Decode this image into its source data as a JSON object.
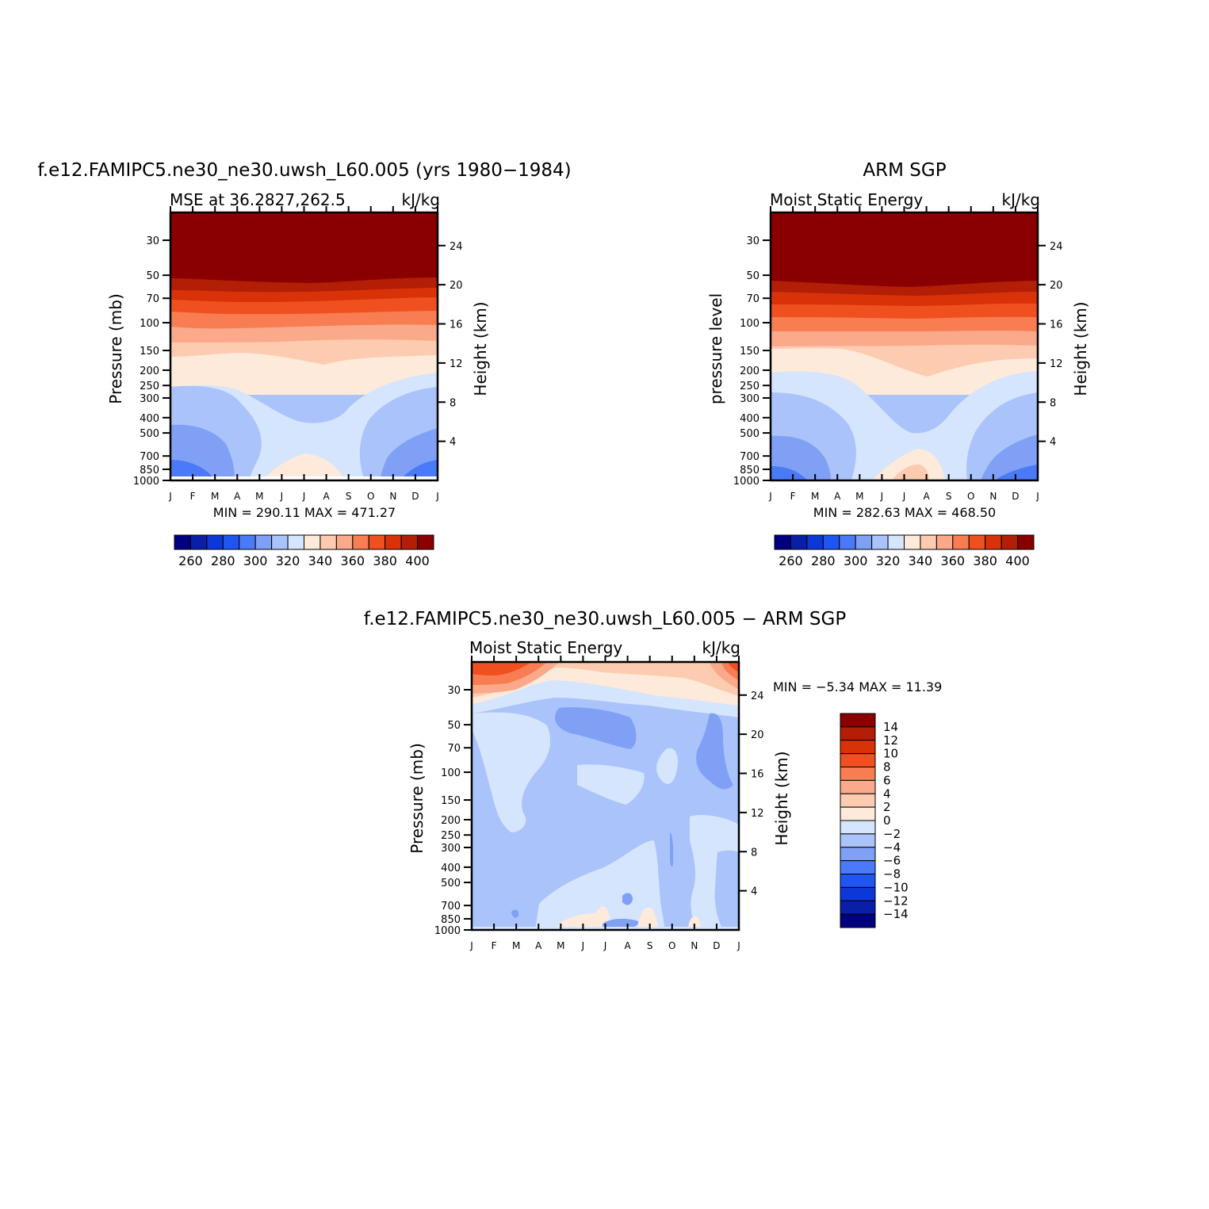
{
  "chart_data": [
    {
      "type": "heatmap",
      "title": "f.e12.FAMIPC5.ne30_ne30.uwsh_L60.005 (yrs 1980−1984)",
      "left_subtitle": "MSE at 36.2827,262.5",
      "right_subtitle": "kJ/kg",
      "ylabel": "Pressure (mb)",
      "ylabel_right": "Height (km)",
      "stats": "MIN = 290.11 MAX = 471.27",
      "x": [
        "J",
        "F",
        "M",
        "A",
        "M",
        "J",
        "J",
        "A",
        "S",
        "O",
        "N",
        "D",
        "J"
      ],
      "y_ticks": [
        "30",
        "50",
        "70",
        "100",
        "150",
        "200",
        "250",
        "300",
        "400",
        "500",
        "700",
        "850",
        "1000"
      ],
      "height_ticks": [
        "24",
        "20",
        "16",
        "12",
        "8",
        "4"
      ],
      "levels": [
        260,
        280,
        300,
        320,
        340,
        360,
        380,
        400
      ],
      "colorbar_labels": [
        "260",
        "280",
        "300",
        "320",
        "340",
        "360",
        "380",
        "400"
      ]
    },
    {
      "type": "heatmap",
      "title": "ARM SGP",
      "left_subtitle": "Moist Static Energy",
      "right_subtitle": "kJ/kg",
      "ylabel": "pressure level",
      "ylabel_right": "Height (km)",
      "stats": "MIN = 282.63 MAX = 468.50",
      "x": [
        "J",
        "F",
        "M",
        "A",
        "M",
        "J",
        "J",
        "A",
        "S",
        "O",
        "N",
        "D",
        "J"
      ],
      "y_ticks": [
        "30",
        "50",
        "70",
        "100",
        "150",
        "200",
        "250",
        "300",
        "400",
        "500",
        "700",
        "850",
        "1000"
      ],
      "height_ticks": [
        "24",
        "20",
        "16",
        "12",
        "8",
        "4"
      ],
      "levels": [
        260,
        280,
        300,
        320,
        340,
        360,
        380,
        400
      ],
      "colorbar_labels": [
        "260",
        "280",
        "300",
        "320",
        "340",
        "360",
        "380",
        "400"
      ]
    },
    {
      "type": "heatmap",
      "title": "f.e12.FAMIPC5.ne30_ne30.uwsh_L60.005 − ARM SGP",
      "left_subtitle": "Moist Static Energy",
      "right_subtitle": "kJ/kg",
      "ylabel": "Pressure (mb)",
      "ylabel_right": "Height (km)",
      "stats": "MIN = −5.34 MAX = 11.39",
      "x": [
        "J",
        "F",
        "M",
        "A",
        "M",
        "J",
        "J",
        "A",
        "S",
        "O",
        "N",
        "D",
        "J"
      ],
      "y_ticks": [
        "30",
        "50",
        "70",
        "100",
        "150",
        "200",
        "250",
        "300",
        "400",
        "500",
        "700",
        "850",
        "1000"
      ],
      "height_ticks": [
        "24",
        "20",
        "16",
        "12",
        "8",
        "4"
      ],
      "levels": [
        -14,
        -12,
        -10,
        -8,
        -6,
        -4,
        -2,
        0,
        2,
        4,
        6,
        8,
        10,
        12,
        14
      ],
      "colorbar_labels": [
        "14",
        "12",
        "10",
        "8",
        "6",
        "4",
        "2",
        "0",
        "−2",
        "−4",
        "−6",
        "−8",
        "−10",
        "−12",
        "−14"
      ]
    }
  ],
  "palette": [
    "#00007f",
    "#0a1fa8",
    "#0d38d8",
    "#1f55f0",
    "#4a7af8",
    "#7fa0f5",
    "#aac3fb",
    "#d4e5fd",
    "#fdeadb",
    "#fdcbb0",
    "#fba98b",
    "#f87d52",
    "#f0501f",
    "#d93209",
    "#b31e06",
    "#8a0000"
  ],
  "diff_palette": [
    "#00007f",
    "#0a1fa8",
    "#0d38d8",
    "#1f55f0",
    "#4a7af8",
    "#7fa0f5",
    "#aac3fb",
    "#d4e5fd",
    "#fdeadb",
    "#fdcbb0",
    "#fba98b",
    "#f87d52",
    "#f0501f",
    "#d93209",
    "#b31e06",
    "#8a0000"
  ]
}
